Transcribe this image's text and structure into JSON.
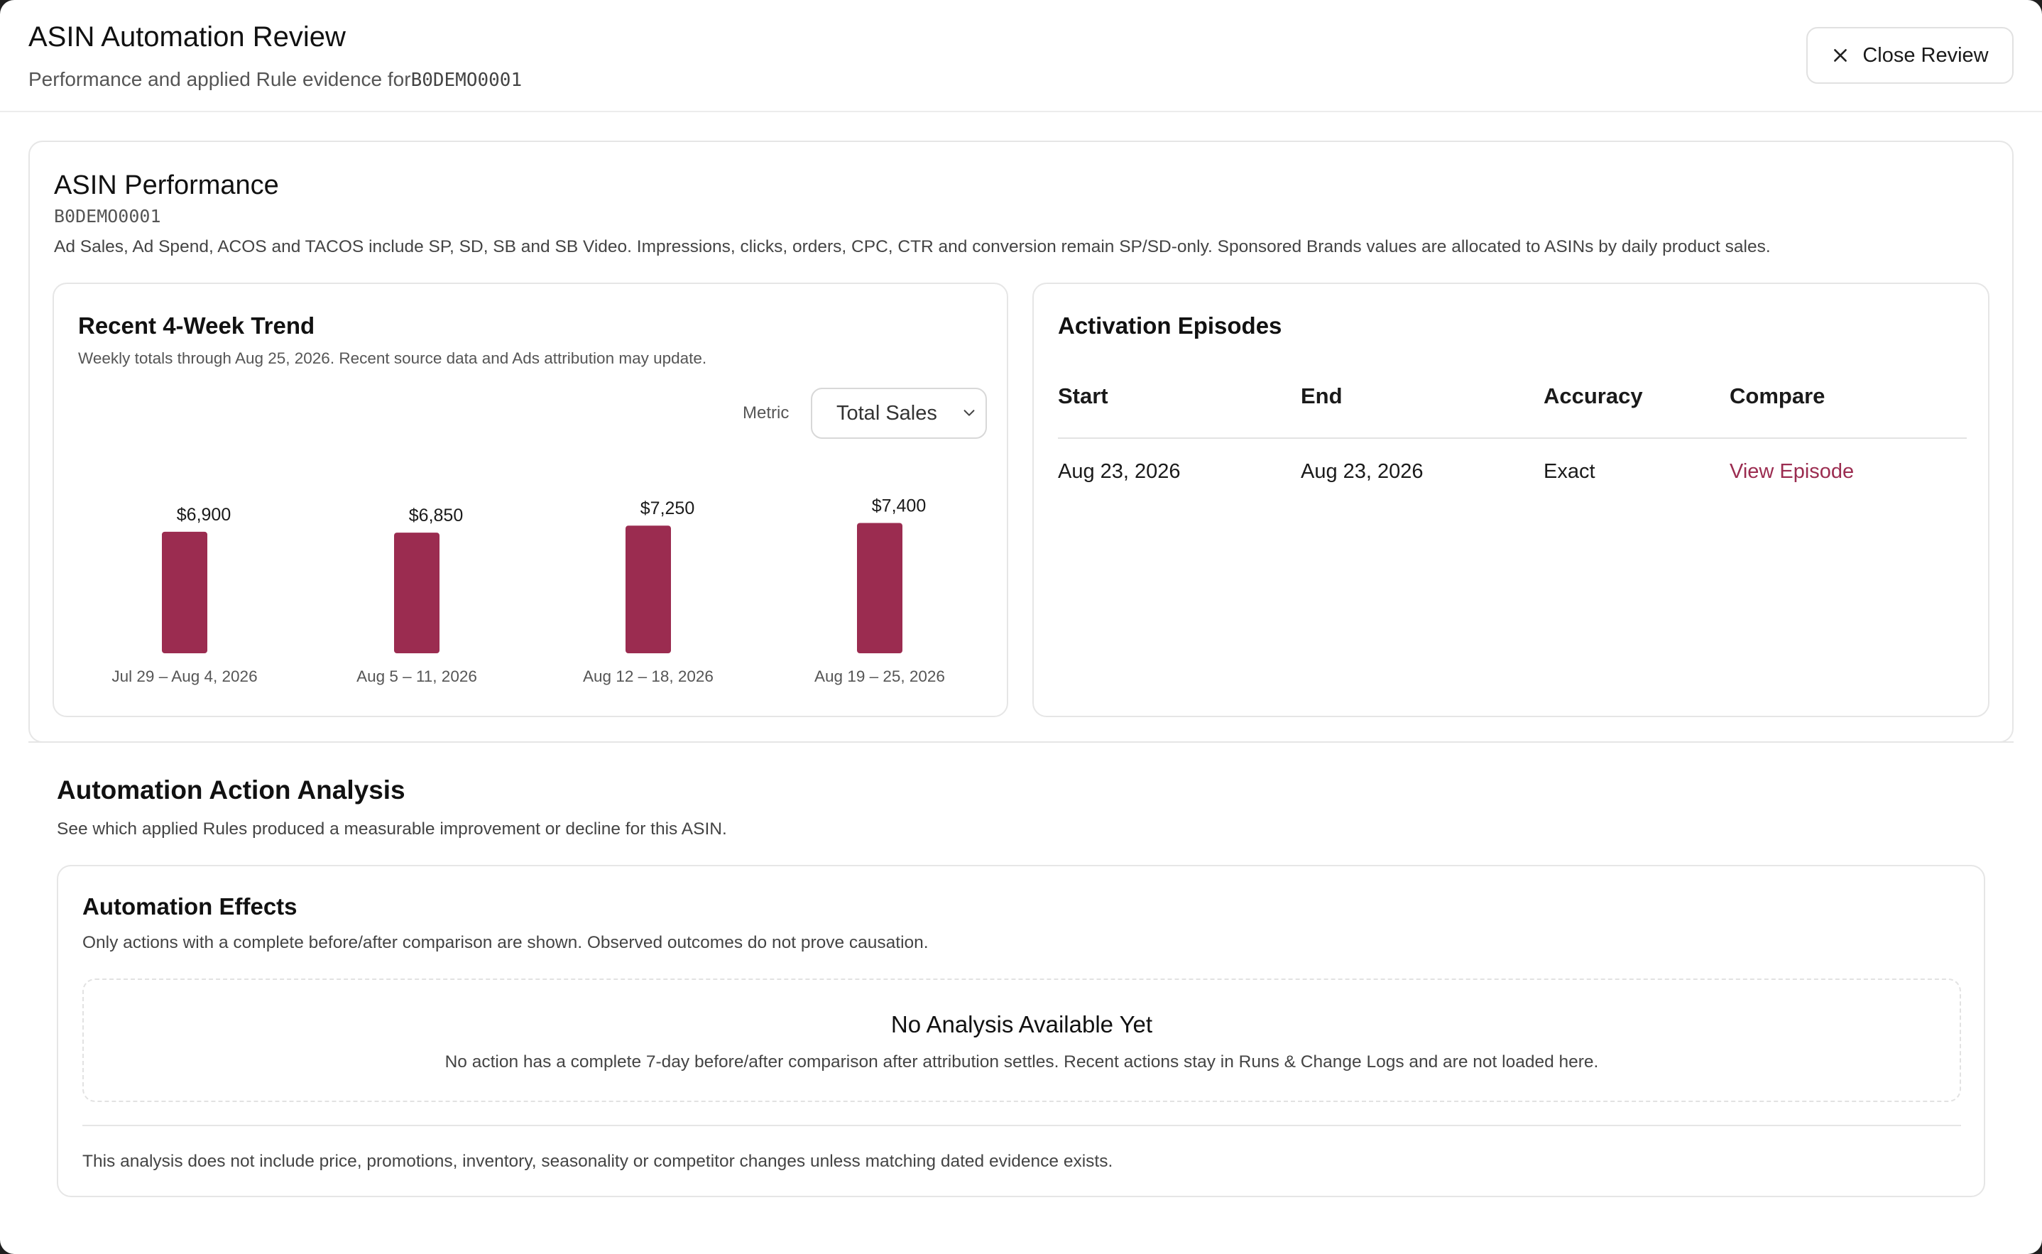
{
  "header": {
    "title": "ASIN Automation Review",
    "subtitle_prefix": "Performance and applied Rule evidence for",
    "asin": "B0DEMO0001",
    "close_label": "Close Review"
  },
  "performance": {
    "title": "ASIN Performance",
    "asin": "B0DEMO0001",
    "note": "Ad Sales, Ad Spend, ACOS and TACOS include SP, SD, SB and SB Video. Impressions, clicks, orders, CPC, CTR and conversion remain SP/SD-only. Sponsored Brands values are allocated to ASINs by daily product sales."
  },
  "trend": {
    "title": "Recent 4-Week Trend",
    "subtitle": "Weekly totals through Aug 25, 2026. Recent source data and Ads attribution may update.",
    "metric_label": "Metric",
    "metric_selected": "Total Sales"
  },
  "chart_data": {
    "type": "bar",
    "title": "",
    "xlabel": "",
    "ylabel": "",
    "categories": [
      "Jul 29 – Aug 4, 2026",
      "Aug 5 – 11, 2026",
      "Aug 12 – 18, 2026",
      "Aug 19 – 25, 2026"
    ],
    "values": [
      6900,
      6850,
      7250,
      7400
    ],
    "value_labels": [
      "$6,900",
      "$6,850",
      "$7,250",
      "$7,400"
    ],
    "bar_color": "#9b2c50",
    "grid": false
  },
  "episodes": {
    "title": "Activation Episodes",
    "columns": [
      "Start",
      "End",
      "Accuracy",
      "Compare"
    ],
    "rows": [
      {
        "start": "Aug 23, 2026",
        "end": "Aug 23, 2026",
        "accuracy": "Exact",
        "compare": "View Episode"
      }
    ]
  },
  "analysis": {
    "title": "Automation Action Analysis",
    "subtitle": "See which applied Rules produced a measurable improvement or decline for this ASIN."
  },
  "effects": {
    "title": "Automation Effects",
    "subtitle": "Only actions with a complete before/after comparison are shown. Observed outcomes do not prove causation.",
    "empty_title": "No Analysis Available Yet",
    "empty_text": "No action has a complete 7-day before/after comparison after attribution settles. Recent actions stay in Runs & Change Logs and are not loaded here.",
    "footnote": "This analysis does not include price, promotions, inventory, seasonality or competitor changes unless matching dated evidence exists."
  },
  "colors": {
    "accent": "#9b2c50",
    "border": "#e6e6e6"
  },
  "icons": {
    "close": "close-icon",
    "select": "chevron-down-icon"
  }
}
